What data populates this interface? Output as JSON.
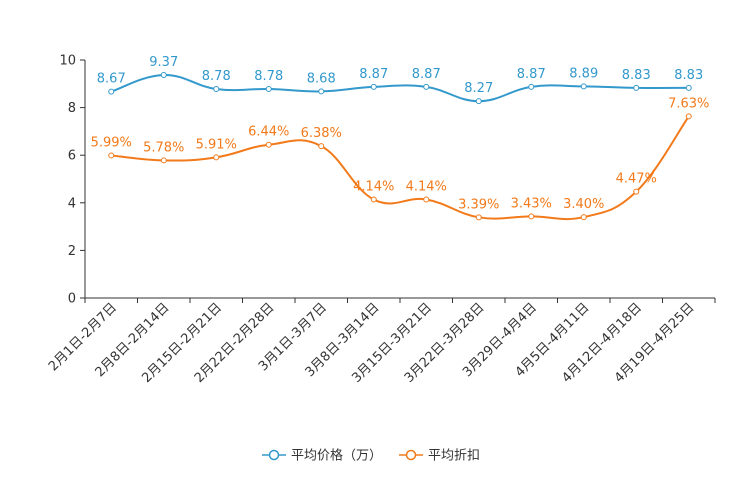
{
  "chart_data": {
    "type": "line",
    "title": "",
    "xlabel": "",
    "ylabel": "",
    "ylim": [
      0,
      10
    ],
    "yticks": [
      0,
      2,
      4,
      6,
      8,
      10
    ],
    "grid": false,
    "legend_position": "bottom-center",
    "categories": [
      "2月1日-2月7日",
      "2月8日-2月14日",
      "2月15日-2月21日",
      "2月22日-2月28日",
      "3月1日-3月7日",
      "3月8日-3月14日",
      "3月15日-3月21日",
      "3月22日-3月28日",
      "3月29日-4月4日",
      "4月5日-4月11日",
      "4月12日-4月18日",
      "4月19日-4月25日"
    ],
    "series": [
      {
        "name": "平均价格（万）",
        "color": "#3399CC",
        "values": [
          8.67,
          9.37,
          8.78,
          8.78,
          8.68,
          8.87,
          8.87,
          8.27,
          8.87,
          8.89,
          8.83,
          8.83
        ],
        "labels": [
          "8.67",
          "9.37",
          "8.78",
          "8.78",
          "8.68",
          "8.87",
          "8.87",
          "8.27",
          "8.87",
          "8.89",
          "8.83",
          "8.83"
        ]
      },
      {
        "name": "平均折扣",
        "color": "#F27A1A",
        "values": [
          5.99,
          5.78,
          5.91,
          6.44,
          6.38,
          4.14,
          4.14,
          3.39,
          3.43,
          3.4,
          4.47,
          7.63
        ],
        "labels": [
          "5.99%",
          "5.78%",
          "5.91%",
          "6.44%",
          "6.38%",
          "4.14%",
          "4.14%",
          "3.39%",
          "3.43%",
          "3.40%",
          "4.47%",
          "7.63%"
        ]
      }
    ]
  }
}
